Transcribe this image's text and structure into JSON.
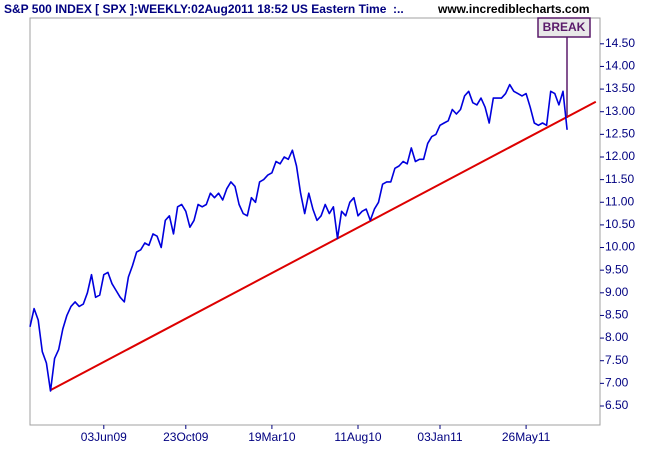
{
  "chart_data": {
    "type": "line",
    "title": "S&P 500 INDEX [ SPX ]:WEEKLY:02Aug2011 18:52 US Eastern Time  :..",
    "source": "www.incrediblecharts.com",
    "annotation": "BREAK",
    "categories": [
      null,
      null,
      null,
      null,
      null,
      null,
      null,
      null,
      null,
      null,
      null,
      null,
      null,
      null,
      null,
      null,
      null,
      null,
      "03Jun09",
      null,
      null,
      null,
      null,
      null,
      null,
      null,
      null,
      null,
      null,
      null,
      null,
      null,
      null,
      null,
      null,
      null,
      null,
      null,
      "23Oct09",
      null,
      null,
      null,
      null,
      null,
      null,
      null,
      null,
      null,
      null,
      null,
      null,
      null,
      null,
      null,
      null,
      null,
      null,
      null,
      null,
      "19Mar10",
      null,
      null,
      null,
      null,
      null,
      null,
      null,
      null,
      null,
      null,
      null,
      null,
      null,
      null,
      null,
      null,
      null,
      null,
      null,
      null,
      "11Aug10",
      null,
      null,
      null,
      null,
      null,
      null,
      null,
      null,
      null,
      null,
      null,
      null,
      null,
      null,
      null,
      null,
      null,
      null,
      null,
      "03Jan11",
      null,
      null,
      null,
      null,
      null,
      null,
      null,
      null,
      null,
      null,
      null,
      null,
      null,
      null,
      null,
      null,
      null,
      null,
      null,
      null,
      "26May11",
      null,
      null,
      null,
      null,
      null,
      null,
      null,
      null,
      null,
      null
    ],
    "values": [
      8.25,
      8.65,
      8.4,
      7.7,
      7.45,
      6.83,
      7.55,
      7.75,
      8.2,
      8.5,
      8.7,
      8.8,
      8.7,
      8.75,
      9.0,
      9.4,
      8.9,
      8.95,
      9.4,
      9.45,
      9.2,
      9.05,
      8.9,
      8.8,
      9.35,
      9.6,
      9.9,
      9.95,
      10.1,
      10.05,
      10.3,
      10.25,
      10.0,
      10.6,
      10.7,
      10.3,
      10.9,
      10.95,
      10.8,
      10.45,
      10.6,
      10.95,
      10.9,
      10.95,
      11.2,
      11.1,
      11.2,
      11.05,
      11.3,
      11.45,
      11.35,
      10.95,
      10.75,
      10.7,
      11.1,
      11.0,
      11.45,
      11.5,
      11.6,
      11.65,
      11.9,
      11.85,
      12.0,
      11.95,
      12.15,
      11.8,
      11.2,
      10.75,
      11.2,
      10.85,
      10.6,
      10.7,
      10.95,
      10.75,
      10.9,
      10.2,
      10.8,
      10.7,
      11.0,
      11.1,
      10.7,
      10.8,
      10.85,
      10.6,
      10.85,
      11.0,
      11.4,
      11.45,
      11.45,
      11.75,
      11.8,
      11.9,
      11.85,
      12.2,
      11.9,
      11.95,
      11.95,
      12.3,
      12.45,
      12.5,
      12.7,
      12.75,
      12.8,
      13.05,
      12.95,
      13.05,
      13.35,
      13.45,
      13.2,
      13.15,
      13.3,
      13.1,
      12.75,
      13.3,
      13.3,
      13.3,
      13.4,
      13.6,
      13.45,
      13.4,
      13.35,
      13.4,
      13.1,
      12.75,
      12.7,
      12.75,
      12.7,
      13.45,
      13.4,
      13.15,
      13.45,
      12.6
    ],
    "color": "#0000dd",
    "trendline": {
      "x": [
        5,
        138
      ],
      "values": [
        6.85,
        13.22
      ],
      "color": "#dd0000"
    },
    "ylim": [
      6.08,
      15.07
    ],
    "yticks": [
      {
        "value": 6.5,
        "label": "6.50"
      },
      {
        "value": 7,
        "label": "7.00"
      },
      {
        "value": 7.5,
        "label": "7.50"
      },
      {
        "value": 8,
        "label": "8.00"
      },
      {
        "value": 8.5,
        "label": "8.50"
      },
      {
        "value": 9,
        "label": "9.00"
      },
      {
        "value": 9.5,
        "label": "9.50"
      },
      {
        "value": 10,
        "label": "10.00"
      },
      {
        "value": 10.5,
        "label": "10.50"
      },
      {
        "value": 11,
        "label": "11.00"
      },
      {
        "value": 11.5,
        "label": "11.50"
      },
      {
        "value": 12,
        "label": "12.00"
      },
      {
        "value": 12.5,
        "label": "12.50"
      },
      {
        "value": 13,
        "label": "13.00"
      },
      {
        "value": 13.5,
        "label": "13.50"
      },
      {
        "value": 14,
        "label": "14.00"
      },
      {
        "value": 14.5,
        "label": "14.50"
      }
    ],
    "yaxis_side": "right",
    "grid": false
  }
}
